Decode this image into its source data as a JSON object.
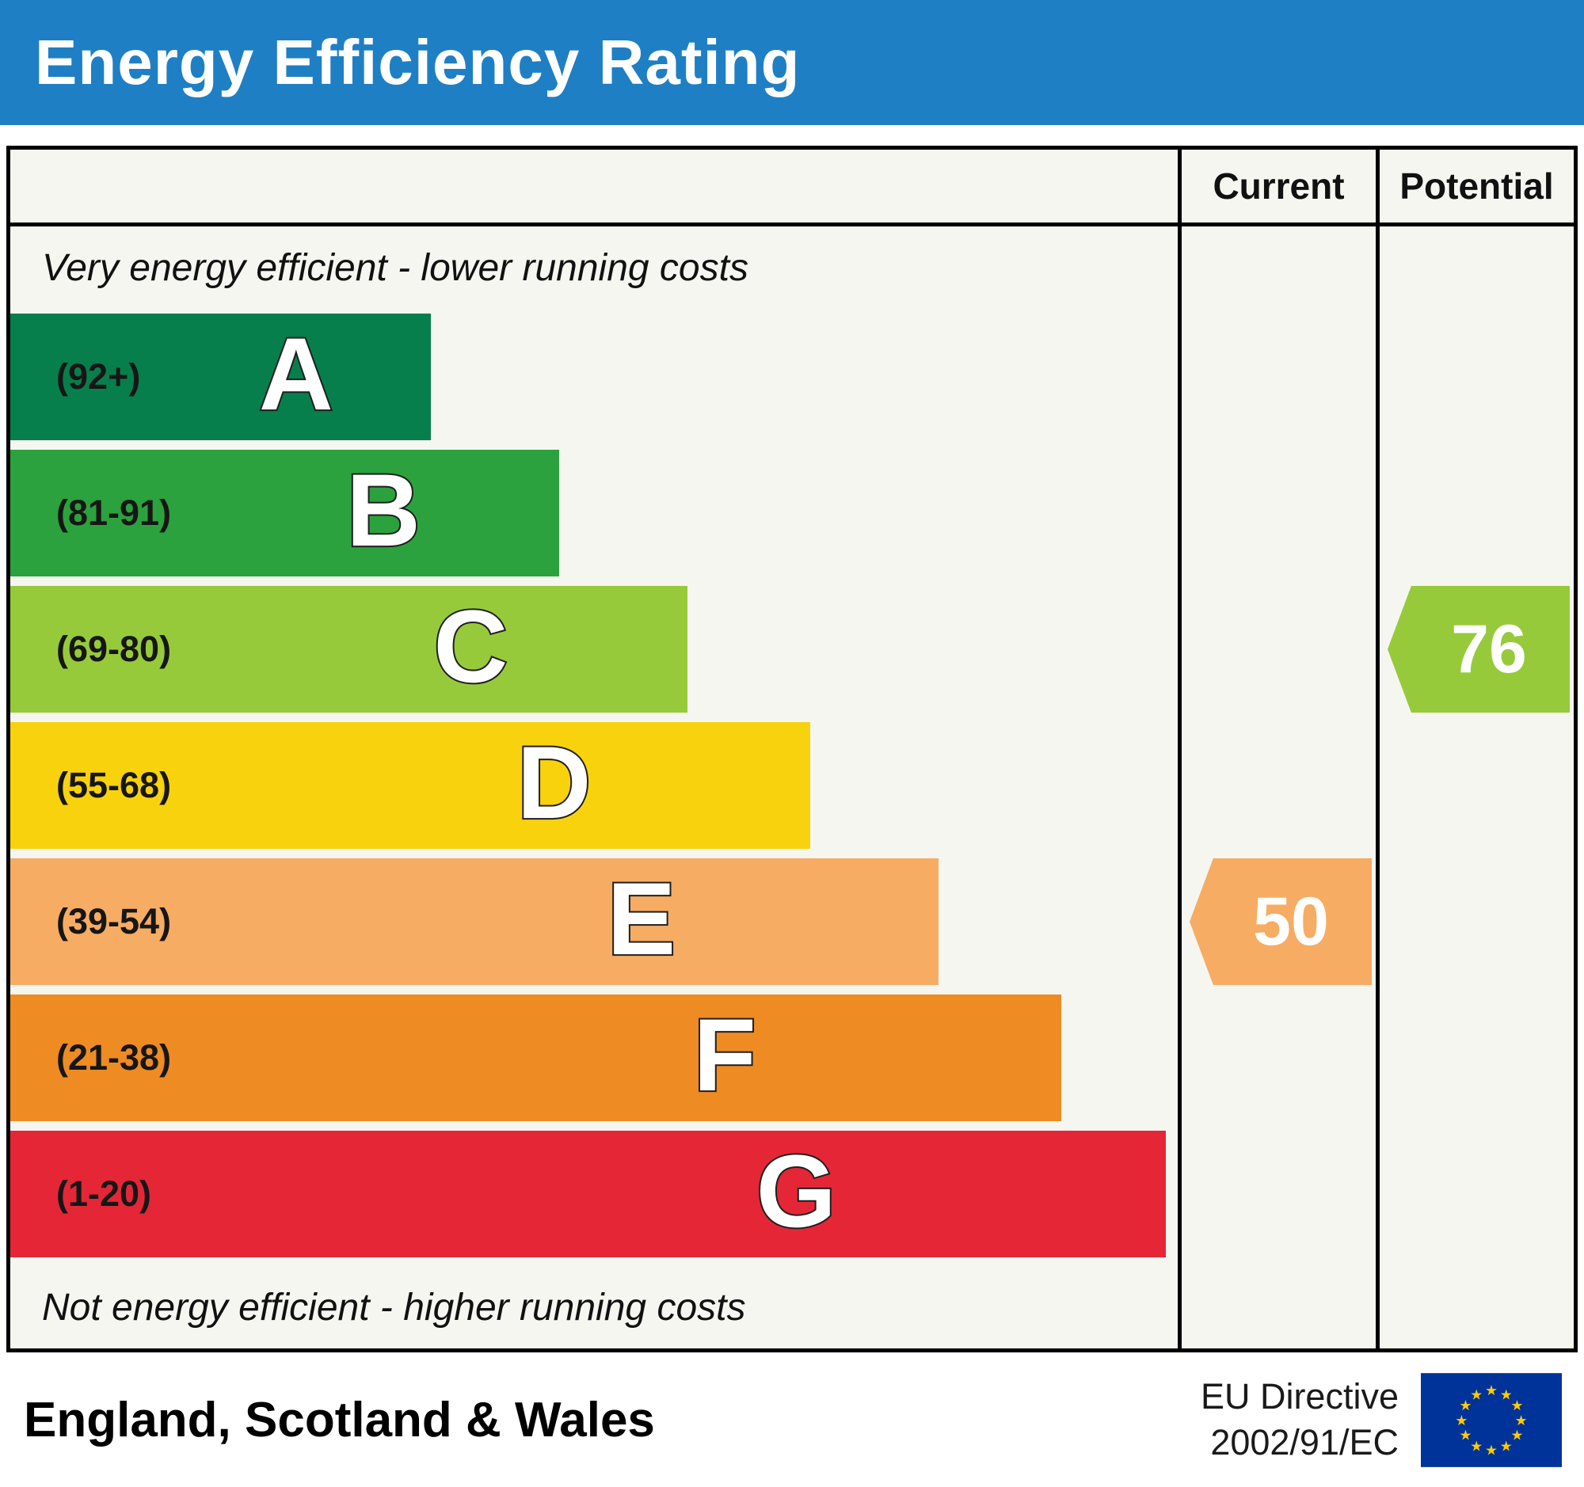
{
  "header": {
    "title": "Energy Efficiency Rating"
  },
  "columns": {
    "current_label": "Current",
    "potential_label": "Potential"
  },
  "captions": {
    "top": "Very energy efficient - lower running costs",
    "bottom": "Not energy efficient - higher running costs"
  },
  "bands": [
    {
      "letter": "A",
      "range": "(92+)",
      "color": "#067f4c",
      "width_pct": 36
    },
    {
      "letter": "B",
      "range": "(81-91)",
      "color": "#2ba23d",
      "width_pct": 47
    },
    {
      "letter": "C",
      "range": "(69-80)",
      "color": "#97ca3a",
      "width_pct": 58
    },
    {
      "letter": "D",
      "range": "(55-68)",
      "color": "#f8d20c",
      "width_pct": 68.5
    },
    {
      "letter": "E",
      "range": "(39-54)",
      "color": "#f6ac63",
      "width_pct": 79.5
    },
    {
      "letter": "F",
      "range": "(21-38)",
      "color": "#ee8b23",
      "width_pct": 90
    },
    {
      "letter": "G",
      "range": "(1-20)",
      "color": "#e52637",
      "width_pct": 99
    }
  ],
  "ratings": {
    "current": {
      "value": "50",
      "band_letter": "E",
      "band_index": 4,
      "color": "#f6ac63"
    },
    "potential": {
      "value": "76",
      "band_letter": "C",
      "band_index": 2,
      "color": "#97ca3a"
    }
  },
  "footer": {
    "region": "England, Scotland & Wales",
    "directive_line1": "EU Directive",
    "directive_line2": "2002/91/EC"
  },
  "colors": {
    "header_bg": "#1f7fc4",
    "eu_flag_bg": "#003399",
    "eu_star": "#ffcc00"
  },
  "chart_data": {
    "type": "bar",
    "title": "Energy Efficiency Rating",
    "categories": [
      "A",
      "B",
      "C",
      "D",
      "E",
      "F",
      "G"
    ],
    "band_ranges": [
      "92+",
      "81-91",
      "69-80",
      "55-68",
      "39-54",
      "21-38",
      "1-20"
    ],
    "band_colors": [
      "#067f4c",
      "#2ba23d",
      "#97ca3a",
      "#f8d20c",
      "#f6ac63",
      "#ee8b23",
      "#e52637"
    ],
    "bar_relative_lengths": [
      36,
      47,
      58,
      68.5,
      79.5,
      90,
      99
    ],
    "current_rating": 50,
    "current_band": "E",
    "potential_rating": 76,
    "potential_band": "C",
    "top_caption": "Very energy efficient - lower running costs",
    "bottom_caption": "Not energy efficient - higher running costs",
    "region": "England, Scotland & Wales",
    "directive": "EU Directive 2002/91/EC",
    "legend_position": "none",
    "grid": false
  }
}
